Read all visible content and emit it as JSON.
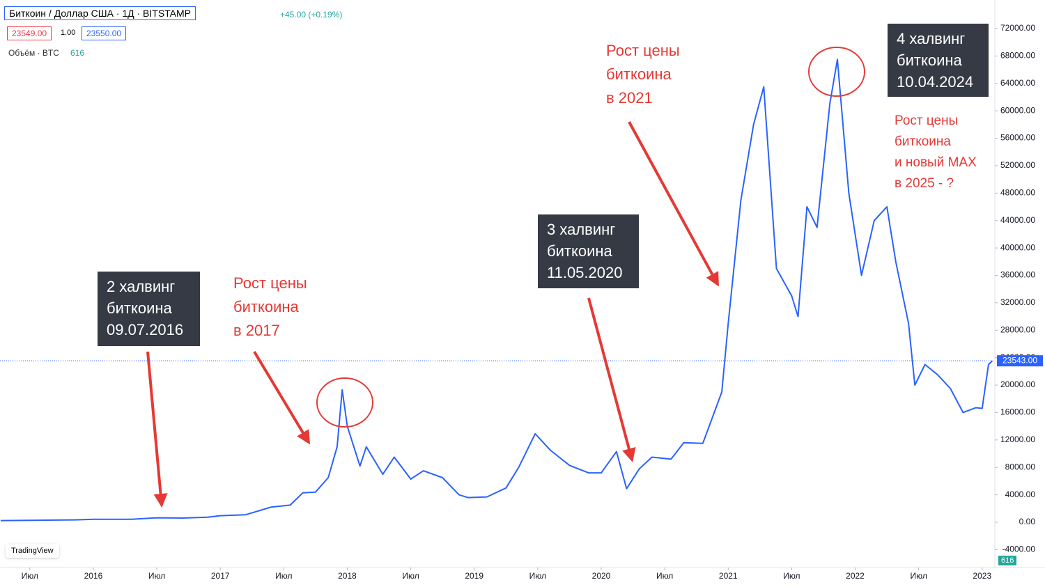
{
  "header": {
    "symbol": "Биткоин / Доллар США · 1Д · BITSTAMP",
    "change": "+45.00 (+0.19%)",
    "sell": "23549.00",
    "spread": "1.00",
    "buy": "23550.00",
    "volume_label": "Объём · BTC",
    "volume": 616,
    "logo": "TradingView"
  },
  "chart_data": {
    "type": "line",
    "series": [
      {
        "name": "BTCUSD",
        "color": "#2962ff",
        "x": [
          2015.27,
          2015.5,
          2015.85,
          2016.0,
          2016.3,
          2016.5,
          2016.7,
          2016.9,
          2017.0,
          2017.2,
          2017.4,
          2017.55,
          2017.65,
          2017.75,
          2017.85,
          2017.92,
          2017.96,
          2018.0,
          2018.1,
          2018.15,
          2018.28,
          2018.37,
          2018.5,
          2018.6,
          2018.75,
          2018.88,
          2018.95,
          2019.1,
          2019.25,
          2019.35,
          2019.48,
          2019.6,
          2019.75,
          2019.9,
          2020.0,
          2020.12,
          2020.2,
          2020.3,
          2020.4,
          2020.55,
          2020.65,
          2020.8,
          2020.88,
          2020.95,
          2021.0,
          2021.1,
          2021.2,
          2021.28,
          2021.38,
          2021.5,
          2021.55,
          2021.62,
          2021.7,
          2021.8,
          2021.86,
          2021.95,
          2022.05,
          2022.15,
          2022.25,
          2022.32,
          2022.42,
          2022.47,
          2022.55,
          2022.65,
          2022.75,
          2022.85,
          2022.95,
          2023.0,
          2023.05,
          2023.08
        ],
        "values": [
          240,
          270,
          350,
          430,
          430,
          650,
          610,
          740,
          960,
          1100,
          2200,
          2500,
          4300,
          4400,
          6500,
          11000,
          19300,
          14000,
          8200,
          11000,
          7000,
          9500,
          6300,
          7500,
          6500,
          4000,
          3600,
          3700,
          5000,
          8000,
          12900,
          10500,
          8300,
          7200,
          7200,
          10300,
          4900,
          7800,
          9500,
          9200,
          11600,
          11500,
          15500,
          19000,
          29000,
          47000,
          58000,
          63500,
          37000,
          33000,
          30000,
          46000,
          43000,
          61000,
          67500,
          48000,
          36000,
          44000,
          46000,
          38000,
          29000,
          20000,
          23000,
          21500,
          19500,
          16000,
          16700,
          16600,
          23000,
          23543
        ]
      }
    ],
    "last_price": {
      "value": 23543,
      "label": "23543.00"
    },
    "xlim": [
      2015.265,
      2023.1
    ],
    "xticks": [
      {
        "value": 2015.5,
        "label": "Июл"
      },
      2016,
      {
        "value": 2016.5,
        "label": "Июл"
      },
      2017,
      {
        "value": 2017.5,
        "label": "Июл"
      },
      2018,
      {
        "value": 2018.5,
        "label": "Июл"
      },
      2019,
      {
        "value": 2019.5,
        "label": "Июл"
      },
      2020,
      {
        "value": 2020.5,
        "label": "Июл"
      },
      2021,
      {
        "value": 2021.5,
        "label": "Июл"
      },
      2022,
      {
        "value": 2022.5,
        "label": "Июл"
      },
      2023
    ],
    "ylim": [
      -6600,
      76160
    ],
    "yticks": [
      {
        "value": -4000,
        "label": "-4000.00"
      },
      {
        "value": 0,
        "label": "0.00"
      },
      {
        "value": 4000,
        "label": "4000.00"
      },
      {
        "value": 8000,
        "label": "8000.00"
      },
      {
        "value": 12000,
        "label": "12000.00"
      },
      {
        "value": 16000,
        "label": "16000.00"
      },
      {
        "value": 20000,
        "label": "20000.00"
      },
      {
        "value": 24000,
        "label": "24000.00"
      },
      {
        "value": 28000,
        "label": "28000.00"
      },
      {
        "value": 32000,
        "label": "32000.00"
      },
      {
        "value": 36000,
        "label": "36000.00"
      },
      {
        "value": 40000,
        "label": "40000.00"
      },
      {
        "value": 44000,
        "label": "44000.00"
      },
      {
        "value": 48000,
        "label": "48000.00"
      },
      {
        "value": 52000,
        "label": "52000.00"
      },
      {
        "value": 56000,
        "label": "56000.00"
      },
      {
        "value": 60000,
        "label": "60000.00"
      },
      {
        "value": 64000,
        "label": "64000.00"
      },
      {
        "value": 68000,
        "label": "68000.00"
      },
      {
        "value": 72000,
        "label": "72000.00"
      }
    ],
    "grid": false,
    "annotations": [
      {
        "style": "box",
        "lines": [
          "2 халвинг",
          "биткоина",
          "09.07.2016"
        ]
      },
      {
        "style": "red",
        "lines": [
          "Рост цены",
          "биткоина",
          "в 2017"
        ]
      },
      {
        "style": "box",
        "lines": [
          "3 халвинг",
          "биткоина",
          "11.05.2020"
        ]
      },
      {
        "style": "red",
        "lines": [
          "Рост цены",
          "биткоина",
          "в 2021"
        ]
      },
      {
        "style": "box",
        "lines": [
          "4 халвинг",
          "биткоина",
          "10.04.2024"
        ]
      },
      {
        "style": "red",
        "lines": [
          "Рост цены",
          "биткоина",
          "и новый MAX",
          "в 2025 - ?"
        ]
      }
    ]
  }
}
